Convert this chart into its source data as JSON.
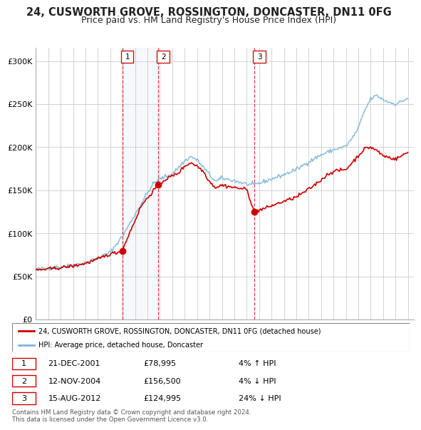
{
  "title_line1": "24, CUSWORTH GROVE, ROSSINGTON, DONCASTER, DN11 0FG",
  "title_line2": "Price paid vs. HM Land Registry's House Price Index (HPI)",
  "title_fontsize": 10.5,
  "subtitle_fontsize": 9.0,
  "ylabel_ticks": [
    "£0",
    "£50K",
    "£100K",
    "£150K",
    "£200K",
    "£250K",
    "£300K"
  ],
  "ytick_values": [
    0,
    50000,
    100000,
    150000,
    200000,
    250000,
    300000
  ],
  "ylim": [
    0,
    315000
  ],
  "xlim_start": 1995.0,
  "xlim_end": 2025.5,
  "hpi_color": "#7ab5d8",
  "price_color": "#cc0000",
  "bg_color": "#ffffff",
  "grid_color": "#cccccc",
  "sale1_date": 2001.97,
  "sale1_price": 78995,
  "sale2_date": 2004.87,
  "sale2_price": 156500,
  "sale3_date": 2012.62,
  "sale3_price": 124995,
  "legend_line1": "24, CUSWORTH GROVE, ROSSINGTON, DONCASTER, DN11 0FG (detached house)",
  "legend_line2": "HPI: Average price, detached house, Doncaster",
  "table_rows": [
    [
      "1",
      "21-DEC-2001",
      "£78,995",
      "4% ↑ HPI"
    ],
    [
      "2",
      "12-NOV-2004",
      "£156,500",
      "4% ↓ HPI"
    ],
    [
      "3",
      "15-AUG-2012",
      "£124,995",
      "24% ↓ HPI"
    ]
  ],
  "footnote": "Contains HM Land Registry data © Crown copyright and database right 2024.\nThis data is licensed under the Open Government Licence v3.0."
}
